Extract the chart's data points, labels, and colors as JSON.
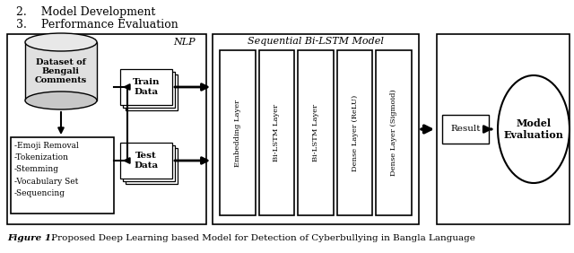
{
  "title_lines": [
    "2.    Model Development",
    "3.    Performance Evaluation"
  ],
  "figure_caption_bold": "Figure 1.",
  "figure_caption_rest": " Proposed Deep Learning based Model for Detection of Cyberbullying in Bangla Language",
  "nlp_label": "NLP",
  "seq_label": "Sequential Bi-LSTM Model",
  "dataset_label": "Dataset of\nBengali\nComments",
  "preprocess_lines": [
    "-Emoji Removal",
    "-Tokenization",
    "-Stemming",
    "-Vocabulary Set",
    "-Sequencing"
  ],
  "train_label": "Train\nData",
  "test_label": "Test\nData",
  "layer_labels": [
    "Embedding Layer",
    "Bi-LSTM Layer",
    "Bi-LSTM Layer",
    "Dense Layer (ReLU)",
    "Dense Layer (Sigmoid)"
  ],
  "result_label": "Result",
  "eval_label": "Model\nEvaluation",
  "bg_color": "#ffffff"
}
